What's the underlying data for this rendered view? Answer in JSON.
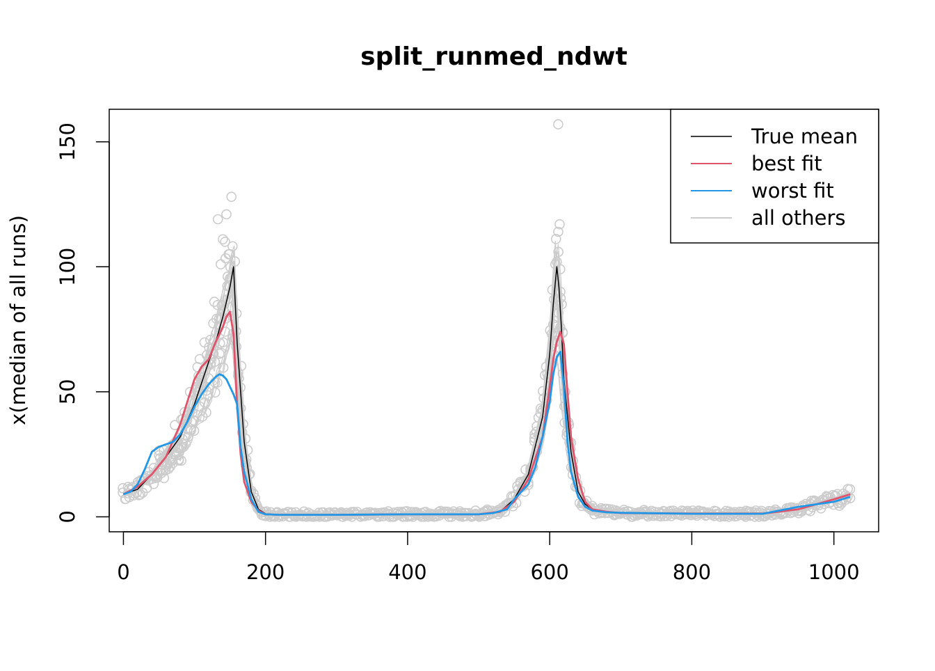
{
  "chart_data": {
    "type": "line",
    "title": "split_runmed_ndwt",
    "xlabel": "",
    "ylabel": "x(median of all runs)",
    "xlim": [
      -20,
      1063
    ],
    "ylim": [
      -6,
      163
    ],
    "x_ticks": [
      0,
      200,
      400,
      600,
      800,
      1000
    ],
    "y_ticks": [
      0,
      50,
      100,
      150
    ],
    "grid": false,
    "legend_position": "top-right",
    "legend": [
      {
        "label": "True mean",
        "color": "#000000"
      },
      {
        "label": "best fit",
        "color": "#DF536B"
      },
      {
        "label": "worst fit",
        "color": "#2297E6"
      },
      {
        "label": "all others",
        "color": "#CCCCCC"
      }
    ],
    "series": [
      {
        "name": "True mean",
        "color": "#000000",
        "x": [
          0,
          20,
          40,
          60,
          80,
          100,
          120,
          130,
          140,
          150,
          155,
          160,
          170,
          180,
          190,
          200,
          220,
          300,
          400,
          500,
          530,
          550,
          570,
          590,
          600,
          605,
          610,
          613,
          616,
          620,
          630,
          640,
          650,
          660,
          680,
          700,
          800,
          900,
          950,
          1000,
          1023
        ],
        "y": [
          9,
          11,
          17,
          24,
          32,
          45,
          62,
          70,
          80,
          92,
          100,
          70,
          30,
          10,
          3,
          1.2,
          0.8,
          0.8,
          1,
          1,
          2,
          7,
          17,
          40,
          65,
          85,
          100,
          92,
          78,
          55,
          26,
          10,
          5,
          3,
          2,
          1.5,
          1.2,
          1.2,
          3,
          7,
          9
        ]
      },
      {
        "name": "best fit",
        "color": "#DF536B",
        "x": [
          0,
          20,
          40,
          60,
          80,
          100,
          110,
          120,
          130,
          140,
          145,
          150,
          155,
          160,
          165,
          170,
          180,
          190,
          200,
          220,
          300,
          400,
          500,
          530,
          550,
          570,
          590,
          600,
          605,
          610,
          615,
          620,
          625,
          630,
          640,
          650,
          660,
          680,
          700,
          800,
          900,
          950,
          1000,
          1023
        ],
        "y": [
          9,
          12,
          17,
          24,
          37,
          55,
          60,
          63,
          70,
          76,
          80,
          82,
          73,
          45,
          25,
          14,
          6,
          2.5,
          1,
          0.8,
          0.8,
          1,
          1,
          2,
          6,
          15,
          32,
          52,
          63,
          70,
          74,
          69,
          50,
          32,
          15,
          6,
          3,
          2,
          1.5,
          1.3,
          1.3,
          3,
          7,
          9
        ]
      },
      {
        "name": "worst fit",
        "color": "#2297E6",
        "x": [
          0,
          10,
          20,
          30,
          40,
          50,
          60,
          70,
          80,
          90,
          100,
          110,
          120,
          130,
          135,
          140,
          145,
          150,
          155,
          160,
          165,
          170,
          180,
          190,
          200,
          220,
          300,
          400,
          500,
          520,
          540,
          550,
          560,
          570,
          580,
          590,
          600,
          605,
          610,
          615,
          620,
          625,
          630,
          640,
          650,
          660,
          680,
          700,
          800,
          900,
          950,
          1000,
          1023
        ],
        "y": [
          9,
          10,
          13,
          19,
          26,
          28,
          29,
          30,
          33,
          38,
          44,
          49,
          53,
          56,
          57,
          56.5,
          55,
          52,
          49,
          45,
          28,
          18,
          7,
          2,
          1,
          0.8,
          0.8,
          1,
          1,
          1.5,
          3,
          7,
          10,
          13,
          20,
          32,
          46,
          57,
          64,
          66,
          52,
          30,
          18,
          8,
          4,
          2.5,
          1.8,
          1.6,
          1.2,
          1.2,
          4,
          6,
          8
        ]
      }
    ]
  }
}
